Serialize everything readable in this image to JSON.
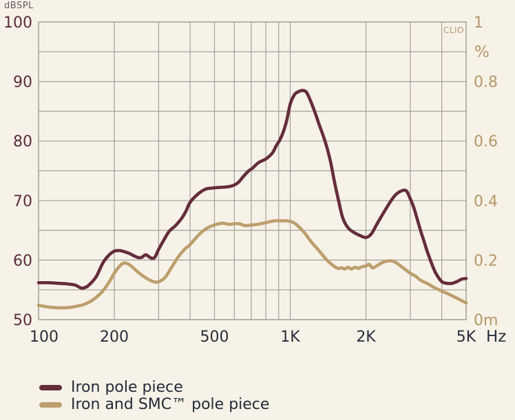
{
  "colors": {
    "background": "#f7f2e7",
    "grid": "#a3a09a",
    "iron_curve": "#642d3c",
    "smc_curve": "#bc9f6e",
    "y_left_text": "#5b2c3e",
    "y_right_text": "#b4976b",
    "x_axis_text": "#272e3c",
    "legend_text": "#222b39"
  },
  "chart_data": {
    "type": "line",
    "title": "",
    "watermark": "CLIO",
    "x_axis": {
      "unit": "Hz",
      "scale": "log",
      "min": 100,
      "max": 5000,
      "gridlines": [
        100,
        200,
        300,
        400,
        500,
        600,
        700,
        800,
        900,
        1000,
        2000,
        3000,
        4000,
        5000
      ],
      "ticks": [
        {
          "hz": 100,
          "label": "100"
        },
        {
          "hz": 200,
          "label": "200"
        },
        {
          "hz": 500,
          "label": "500"
        },
        {
          "hz": 1000,
          "label": "1K"
        },
        {
          "hz": 2000,
          "label": "2K"
        },
        {
          "hz": 5000,
          "label": "5K"
        }
      ]
    },
    "y_left": {
      "unit": "dBSPL",
      "min": 50,
      "max": 100,
      "grid_step": 5,
      "ticks": [
        {
          "db": 100,
          "label": "100"
        },
        {
          "db": 90,
          "label": "90"
        },
        {
          "db": 80,
          "label": "80"
        },
        {
          "db": 70,
          "label": "70"
        },
        {
          "db": 60,
          "label": "60"
        },
        {
          "db": 50,
          "label": "50"
        }
      ]
    },
    "y_right": {
      "unit": "%",
      "min": 0,
      "max": 1,
      "ticks": [
        {
          "db": 100,
          "label": "1"
        },
        {
          "db": 90,
          "label": "0.8"
        },
        {
          "db": 80,
          "label": "0.6"
        },
        {
          "db": 70,
          "label": "0.4"
        },
        {
          "db": 60,
          "label": "0.2"
        },
        {
          "db": 50,
          "label": "0m"
        }
      ]
    },
    "legend_position": "bottom-left",
    "series": [
      {
        "name": "Iron pole piece",
        "color_key": "iron_curve",
        "points": [
          [
            100,
            56.2
          ],
          [
            110,
            56.2
          ],
          [
            120,
            56.1
          ],
          [
            130,
            56.0
          ],
          [
            140,
            55.8
          ],
          [
            148,
            55.3
          ],
          [
            155,
            55.5
          ],
          [
            162,
            56.2
          ],
          [
            170,
            57.3
          ],
          [
            180,
            59.5
          ],
          [
            190,
            60.8
          ],
          [
            200,
            61.5
          ],
          [
            210,
            61.6
          ],
          [
            220,
            61.4
          ],
          [
            230,
            61.1
          ],
          [
            240,
            60.7
          ],
          [
            250,
            60.4
          ],
          [
            258,
            60.5
          ],
          [
            266,
            60.9
          ],
          [
            274,
            60.6
          ],
          [
            282,
            60.3
          ],
          [
            290,
            60.5
          ],
          [
            300,
            61.8
          ],
          [
            315,
            63.4
          ],
          [
            330,
            64.8
          ],
          [
            350,
            65.8
          ],
          [
            370,
            67.0
          ],
          [
            385,
            68.2
          ],
          [
            400,
            69.7
          ],
          [
            430,
            71.1
          ],
          [
            460,
            71.9
          ],
          [
            490,
            72.1
          ],
          [
            520,
            72.2
          ],
          [
            560,
            72.3
          ],
          [
            590,
            72.5
          ],
          [
            620,
            73.0
          ],
          [
            650,
            74.0
          ],
          [
            680,
            74.9
          ],
          [
            710,
            75.5
          ],
          [
            750,
            76.4
          ],
          [
            800,
            77.0
          ],
          [
            850,
            78.0
          ],
          [
            880,
            79.2
          ],
          [
            910,
            80.2
          ],
          [
            940,
            81.6
          ],
          [
            970,
            83.6
          ],
          [
            1000,
            86.2
          ],
          [
            1040,
            87.8
          ],
          [
            1080,
            88.3
          ],
          [
            1120,
            88.5
          ],
          [
            1160,
            88.2
          ],
          [
            1200,
            86.9
          ],
          [
            1250,
            85.0
          ],
          [
            1300,
            82.9
          ],
          [
            1360,
            80.6
          ],
          [
            1400,
            78.9
          ],
          [
            1450,
            76.3
          ],
          [
            1500,
            73.1
          ],
          [
            1560,
            69.8
          ],
          [
            1620,
            67.0
          ],
          [
            1700,
            65.4
          ],
          [
            1800,
            64.6
          ],
          [
            1900,
            64.1
          ],
          [
            2000,
            63.8
          ],
          [
            2100,
            64.4
          ],
          [
            2200,
            65.9
          ],
          [
            2300,
            67.3
          ],
          [
            2400,
            68.6
          ],
          [
            2500,
            69.8
          ],
          [
            2600,
            70.8
          ],
          [
            2700,
            71.4
          ],
          [
            2800,
            71.7
          ],
          [
            2900,
            71.6
          ],
          [
            3000,
            70.3
          ],
          [
            3100,
            68.8
          ],
          [
            3200,
            66.8
          ],
          [
            3300,
            64.9
          ],
          [
            3400,
            63.2
          ],
          [
            3500,
            61.5
          ],
          [
            3650,
            59.4
          ],
          [
            3800,
            57.7
          ],
          [
            4000,
            56.4
          ],
          [
            4200,
            56.1
          ],
          [
            4400,
            56.1
          ],
          [
            4600,
            56.4
          ],
          [
            4800,
            56.8
          ],
          [
            5000,
            56.9
          ]
        ]
      },
      {
        "name": "Iron and SMC™ pole piece",
        "color_key": "smc_curve",
        "points": [
          [
            100,
            52.4
          ],
          [
            110,
            52.1
          ],
          [
            120,
            52.0
          ],
          [
            130,
            52.0
          ],
          [
            140,
            52.2
          ],
          [
            150,
            52.5
          ],
          [
            160,
            53.0
          ],
          [
            170,
            53.8
          ],
          [
            180,
            54.8
          ],
          [
            190,
            56.2
          ],
          [
            200,
            57.8
          ],
          [
            210,
            59.0
          ],
          [
            218,
            59.5
          ],
          [
            226,
            59.4
          ],
          [
            235,
            58.9
          ],
          [
            245,
            58.2
          ],
          [
            255,
            57.6
          ],
          [
            265,
            57.1
          ],
          [
            275,
            56.7
          ],
          [
            285,
            56.4
          ],
          [
            295,
            56.3
          ],
          [
            305,
            56.5
          ],
          [
            320,
            57.2
          ],
          [
            340,
            59.0
          ],
          [
            360,
            60.6
          ],
          [
            380,
            61.8
          ],
          [
            400,
            62.6
          ],
          [
            430,
            64.1
          ],
          [
            460,
            65.2
          ],
          [
            500,
            65.9
          ],
          [
            540,
            66.2
          ],
          [
            570,
            66.0
          ],
          [
            600,
            66.1
          ],
          [
            630,
            66.1
          ],
          [
            660,
            65.8
          ],
          [
            700,
            65.9
          ],
          [
            740,
            66.0
          ],
          [
            780,
            66.2
          ],
          [
            820,
            66.4
          ],
          [
            870,
            66.6
          ],
          [
            910,
            66.6
          ],
          [
            960,
            66.6
          ],
          [
            1000,
            66.5
          ],
          [
            1050,
            66.1
          ],
          [
            1100,
            65.3
          ],
          [
            1150,
            64.4
          ],
          [
            1200,
            63.3
          ],
          [
            1300,
            61.6
          ],
          [
            1400,
            60.0
          ],
          [
            1500,
            58.9
          ],
          [
            1550,
            58.6
          ],
          [
            1600,
            58.7
          ],
          [
            1650,
            58.5
          ],
          [
            1700,
            58.8
          ],
          [
            1750,
            58.5
          ],
          [
            1810,
            58.8
          ],
          [
            1870,
            58.6
          ],
          [
            1930,
            58.9
          ],
          [
            2000,
            59.0
          ],
          [
            2060,
            59.3
          ],
          [
            2120,
            58.7
          ],
          [
            2200,
            59.0
          ],
          [
            2300,
            59.5
          ],
          [
            2400,
            59.8
          ],
          [
            2500,
            59.9
          ],
          [
            2600,
            59.7
          ],
          [
            2730,
            59.1
          ],
          [
            2850,
            58.5
          ],
          [
            3000,
            57.8
          ],
          [
            3150,
            57.3
          ],
          [
            3300,
            56.6
          ],
          [
            3500,
            56.1
          ],
          [
            3700,
            55.5
          ],
          [
            4000,
            54.8
          ],
          [
            4300,
            54.2
          ],
          [
            4600,
            53.6
          ],
          [
            4800,
            53.2
          ],
          [
            5000,
            52.8
          ]
        ]
      }
    ]
  }
}
